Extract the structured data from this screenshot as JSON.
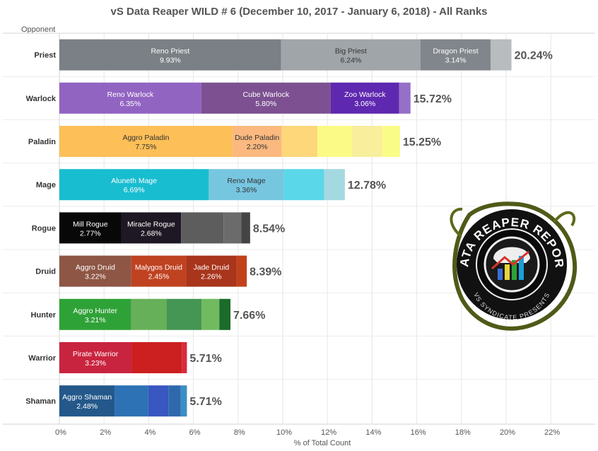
{
  "chart_data": {
    "type": "bar",
    "orientation": "horizontal",
    "stacked": true,
    "title": "vS Data Reaper WILD # 6 (December 10, 2017 - January  6, 2018) - All Ranks",
    "ylabel": "Opponent",
    "xlabel": "% of Total Count",
    "xlim": [
      0,
      22
    ],
    "xticks": [
      "0%",
      "2%",
      "4%",
      "6%",
      "8%",
      "10%",
      "12%",
      "14%",
      "16%",
      "18%",
      "20%",
      "22%"
    ],
    "grid": "vertical",
    "categories": [
      "Priest",
      "Warlock",
      "Paladin",
      "Mage",
      "Rogue",
      "Druid",
      "Hunter",
      "Warrior",
      "Shaman"
    ],
    "totals": [
      "20.24%",
      "15.72%",
      "15.25%",
      "12.78%",
      "8.54%",
      "8.39%",
      "7.66%",
      "5.71%",
      "5.71%"
    ],
    "bars": [
      {
        "category": "Priest",
        "segments": [
          {
            "name": "Reno Priest",
            "value": 9.93,
            "label": "9.93%",
            "color": "#7a8085"
          },
          {
            "name": "Big Priest",
            "value": 6.24,
            "label": "6.24%",
            "color": "#a0a5a9"
          },
          {
            "name": "Dragon Priest",
            "value": 3.14,
            "label": "3.14%",
            "color": "#80868b"
          },
          {
            "name": "",
            "value": 0.93,
            "label": "",
            "color": "#b8bcbf"
          }
        ]
      },
      {
        "category": "Warlock",
        "segments": [
          {
            "name": "Reno Warlock",
            "value": 6.35,
            "label": "6.35%",
            "color": "#9264c2"
          },
          {
            "name": "Cube Warlock",
            "value": 5.8,
            "label": "5.80%",
            "color": "#7d5191"
          },
          {
            "name": "Zoo Warlock",
            "value": 3.06,
            "label": "3.06%",
            "color": "#5f28b0"
          },
          {
            "name": "",
            "value": 0.51,
            "label": "",
            "color": "#9670c8"
          }
        ]
      },
      {
        "category": "Paladin",
        "segments": [
          {
            "name": "Aggro Paladin",
            "value": 7.75,
            "label": "7.75%",
            "color": "#fdbf57"
          },
          {
            "name": "Dude Paladin",
            "value": 2.2,
            "label": "2.20%",
            "color": "#fbb97f"
          },
          {
            "name": "",
            "value": 1.6,
            "label": "",
            "color": "#fdd77a"
          },
          {
            "name": "",
            "value": 1.55,
            "label": "",
            "color": "#fbfa86"
          },
          {
            "name": "",
            "value": 1.35,
            "label": "",
            "color": "#f8ee9c"
          },
          {
            "name": "",
            "value": 0.8,
            "label": "",
            "color": "#fafc88"
          }
        ]
      },
      {
        "category": "Mage",
        "segments": [
          {
            "name": "Aluneth Mage",
            "value": 6.69,
            "label": "6.69%",
            "color": "#19bdd0"
          },
          {
            "name": "Reno Mage",
            "value": 3.36,
            "label": "3.36%",
            "color": "#77c6e0"
          },
          {
            "name": "",
            "value": 1.8,
            "label": "",
            "color": "#5ad7e8"
          },
          {
            "name": "",
            "value": 0.93,
            "label": "",
            "color": "#a5d9e2"
          }
        ]
      },
      {
        "category": "Rogue",
        "segments": [
          {
            "name": "Mill Rogue",
            "value": 2.77,
            "label": "2.77%",
            "color": "#080808"
          },
          {
            "name": "Miracle Rogue",
            "value": 2.68,
            "label": "2.68%",
            "color": "#1e1824"
          },
          {
            "name": "",
            "value": 1.9,
            "label": "",
            "color": "#5d5d5d"
          },
          {
            "name": "",
            "value": 0.8,
            "label": "",
            "color": "#6b6b6b"
          },
          {
            "name": "",
            "value": 0.39,
            "label": "",
            "color": "#444444"
          }
        ]
      },
      {
        "category": "Druid",
        "segments": [
          {
            "name": "Aggro Druid",
            "value": 3.22,
            "label": "3.22%",
            "color": "#8e5645"
          },
          {
            "name": "Malygos Druid",
            "value": 2.45,
            "label": "2.45%",
            "color": "#bf4221"
          },
          {
            "name": "Jade Druid",
            "value": 2.26,
            "label": "2.26%",
            "color": "#a8351c"
          },
          {
            "name": "",
            "value": 0.46,
            "label": "",
            "color": "#c1421a"
          }
        ]
      },
      {
        "category": "Hunter",
        "segments": [
          {
            "name": "Aggro Hunter",
            "value": 3.21,
            "label": "3.21%",
            "color": "#2fa237"
          },
          {
            "name": "",
            "value": 1.6,
            "label": "",
            "color": "#67b05a"
          },
          {
            "name": "",
            "value": 1.55,
            "label": "",
            "color": "#459554"
          },
          {
            "name": "",
            "value": 0.8,
            "label": "",
            "color": "#72ba60"
          },
          {
            "name": "",
            "value": 0.5,
            "label": "",
            "color": "#1b6b2b"
          }
        ]
      },
      {
        "category": "Warrior",
        "segments": [
          {
            "name": "Pirate Warrior",
            "value": 3.23,
            "label": "3.23%",
            "color": "#c9243f"
          },
          {
            "name": "",
            "value": 2.25,
            "label": "",
            "color": "#cc1f1f"
          },
          {
            "name": "",
            "value": 0.23,
            "label": "",
            "color": "#d82a3a"
          }
        ]
      },
      {
        "category": "Shaman",
        "segments": [
          {
            "name": "Aggro Shaman",
            "value": 2.48,
            "label": "2.48%",
            "color": "#24588a"
          },
          {
            "name": "",
            "value": 1.5,
            "label": "",
            "color": "#2c72b4"
          },
          {
            "name": "",
            "value": 0.9,
            "label": "",
            "color": "#3857c0"
          },
          {
            "name": "",
            "value": 0.55,
            "label": "",
            "color": "#2f69ad"
          },
          {
            "name": "",
            "value": 0.28,
            "label": "",
            "color": "#3a8ec6"
          }
        ]
      }
    ]
  },
  "logo": {
    "title_text": "DATA REAPER REPORT",
    "subtitle_text": "VS SYNDICATE PRESENTS",
    "icon": "skull-bar-chart-emblem-icon"
  }
}
